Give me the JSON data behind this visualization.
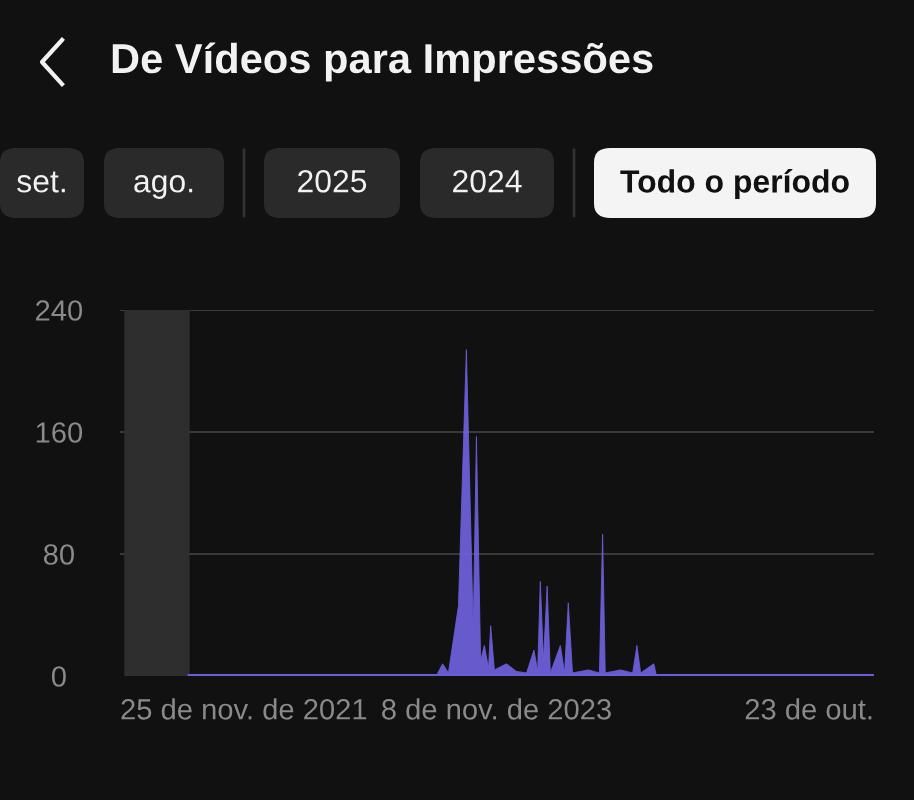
{
  "chart_data": {
    "type": "area",
    "title": "De Vídeos para Impressões",
    "annotations": [
      "set.",
      "ago.",
      "2025",
      "2024",
      "Todo o período"
    ],
    "x": [
      "2022-04-06",
      "2023-07-17",
      "2023-07-29",
      "2023-08-09",
      "2023-08-28",
      "2023-09-12",
      "2023-09-20",
      "2023-09-25",
      "2023-10-01",
      "2023-10-09",
      "2023-10-16",
      "2023-10-24",
      "2023-10-28",
      "2023-11-04",
      "2023-11-27",
      "2023-12-16",
      "2024-01-04",
      "2024-01-18",
      "2024-01-25",
      "2024-01-30",
      "2024-02-05",
      "2024-02-12",
      "2024-02-18",
      "2024-03-08",
      "2024-03-16",
      "2024-03-23",
      "2024-03-31",
      "2024-04-30",
      "2024-05-21",
      "2024-05-27",
      "2024-06-01",
      "2024-06-30",
      "2024-07-23",
      "2024-07-31",
      "2024-08-07",
      "2024-09-01",
      "2024-09-06",
      "2025-10-23"
    ],
    "series": [
      {
        "color": "#6b5fd8",
        "values": [
          0,
          0,
          8,
          2,
          46,
          214,
          102,
          30,
          157,
          10,
          20,
          5,
          33,
          4,
          8,
          3,
          2,
          17,
          3,
          62,
          10,
          59,
          2,
          20,
          2,
          48,
          2,
          4,
          2,
          93,
          2,
          4,
          2,
          20,
          2,
          8,
          0,
          0
        ]
      }
    ],
    "xlim": [
      "2021-11-25",
      "2025-10-23"
    ],
    "xticks": [
      {
        "value": "2021-11-25",
        "label": "25 de nov. de 2021"
      },
      {
        "value": "2023-11-08",
        "label": "8 de nov. de 2023"
      },
      {
        "value": "2025-10-23",
        "label": "23 de out."
      }
    ],
    "ylim": [
      0,
      240
    ],
    "yticks": [
      0,
      80,
      160,
      240
    ],
    "grid": "y",
    "bands": [
      {
        "axis": "x",
        "from": "2021-12-03",
        "to": "2022-04-06",
        "color": "#2e2e2e"
      }
    ]
  }
}
